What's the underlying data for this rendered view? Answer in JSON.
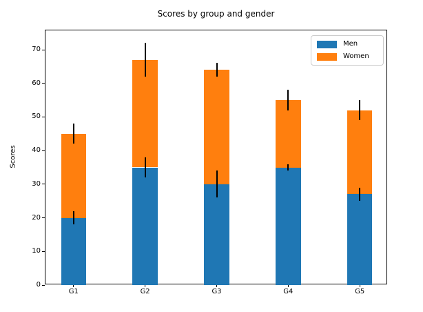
{
  "chart_data": {
    "type": "bar",
    "stacked": true,
    "title": "Scores by group and gender",
    "ylabel": "Scores",
    "xlabel": "",
    "categories": [
      "G1",
      "G2",
      "G3",
      "G4",
      "G5"
    ],
    "series": [
      {
        "name": "Men",
        "color": "#1f77b4",
        "values": [
          20,
          35,
          30,
          35,
          27
        ],
        "errors": [
          2,
          3,
          4,
          1,
          2
        ]
      },
      {
        "name": "Women",
        "color": "#ff7f0e",
        "values": [
          25,
          32,
          34,
          20,
          25
        ],
        "errors": [
          3,
          5,
          2,
          3,
          3
        ]
      }
    ],
    "stack_totals": [
      45,
      67,
      64,
      55,
      52
    ],
    "error_bar_color": "#000000",
    "yticks": [
      0,
      10,
      20,
      30,
      40,
      50,
      60,
      70
    ],
    "ylim": [
      0,
      75.75
    ],
    "xlim": [
      -0.3925,
      4.3925
    ],
    "bar_width": 0.35,
    "grid": false,
    "legend": {
      "position": "upper right"
    },
    "axes_background": "#ffffff",
    "spine_color": "#000000"
  }
}
